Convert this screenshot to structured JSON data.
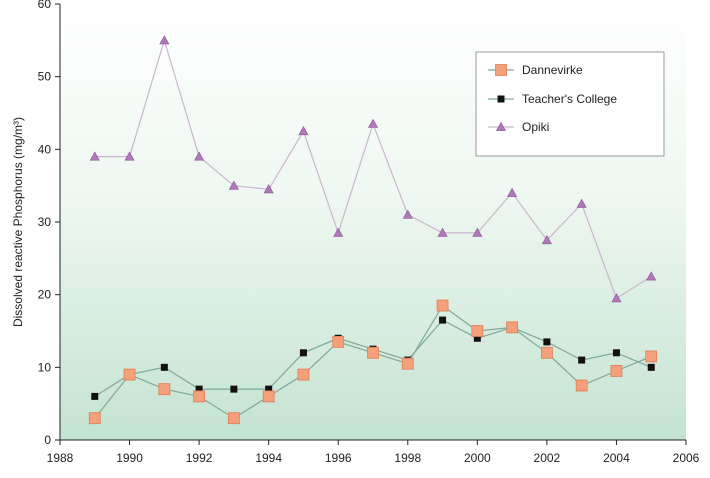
{
  "chart_data": {
    "type": "line",
    "title": "",
    "xlabel": "",
    "ylabel": "Dissolved reactive Phosphorus (mg/m³)",
    "xlim": [
      1988,
      2006
    ],
    "ylim": [
      0,
      60
    ],
    "xticks": [
      1988,
      1990,
      1992,
      1994,
      1996,
      1998,
      2000,
      2002,
      2004,
      2006
    ],
    "yticks": [
      0,
      10,
      20,
      30,
      40,
      50,
      60
    ],
    "grid": false,
    "legend_position": "top-right",
    "background": "gradient white to light green",
    "series": [
      {
        "name": "Dannevirke",
        "color": "#f4a07a",
        "line_color": "#7fa89a",
        "marker": "square",
        "x": [
          1989,
          1990,
          1991,
          1992,
          1993,
          1994,
          1995,
          1996,
          1997,
          1998,
          1999,
          2000,
          2001,
          2002,
          2003,
          2004,
          2005
        ],
        "values": [
          3,
          9,
          7,
          6,
          3,
          6,
          9,
          13.5,
          12,
          10.5,
          18.5,
          15,
          15.5,
          12,
          7.5,
          9.5,
          11.5
        ]
      },
      {
        "name": "Teacher's College",
        "color": "#111111",
        "line_color": "#7fa89a",
        "marker": "small-square",
        "x": [
          1989,
          1990,
          1991,
          1992,
          1993,
          1994,
          1995,
          1996,
          1997,
          1998,
          1999,
          2000,
          2001,
          2002,
          2003,
          2004,
          2005
        ],
        "values": [
          6,
          9,
          10,
          7,
          7,
          7,
          12,
          14,
          12.5,
          11,
          16.5,
          14,
          15.5,
          13.5,
          11,
          12,
          10
        ]
      },
      {
        "name": "Opiki",
        "color": "#b07ab8",
        "line_color": "#cbb6cf",
        "marker": "triangle",
        "x": [
          1989,
          1990,
          1991,
          1992,
          1993,
          1994,
          1995,
          1996,
          1997,
          1998,
          1999,
          2000,
          2001,
          2002,
          2003,
          2004,
          2005
        ],
        "values": [
          39,
          39,
          55,
          39,
          35,
          34.5,
          42.5,
          28.5,
          43.5,
          31,
          28.5,
          28.5,
          34,
          27.5,
          32.5,
          19.5,
          22.5
        ]
      }
    ]
  }
}
